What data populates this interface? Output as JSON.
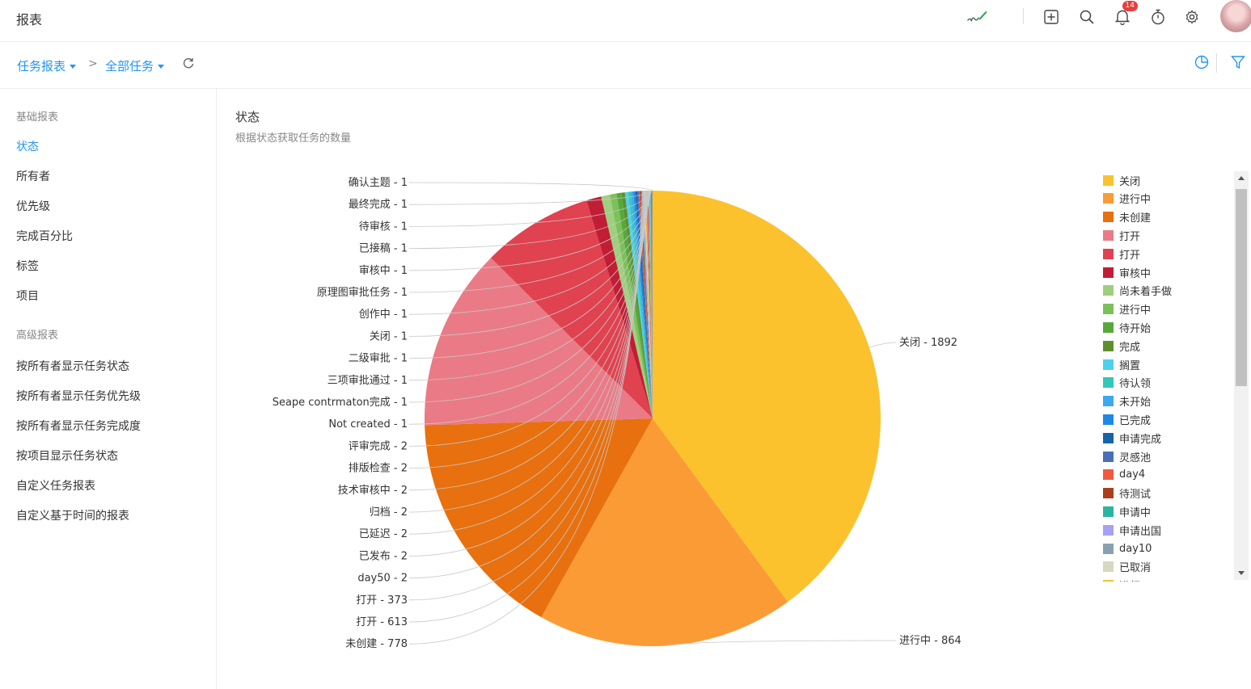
{
  "header": {
    "title": "报表",
    "notification_count": "14",
    "icons": [
      "sign-icon",
      "add-icon",
      "search-icon",
      "bell-icon",
      "timer-icon",
      "gear-icon",
      "avatar"
    ]
  },
  "breadcrumb": {
    "item1": "任务报表",
    "item2": "全部任务"
  },
  "sidebar": {
    "section_basic": "基础报表",
    "basic_items": [
      "状态",
      "所有者",
      "优先级",
      "完成百分比",
      "标签",
      "项目"
    ],
    "section_advanced": "高级报表",
    "advanced_items": [
      "按所有者显示任务状态",
      "按所有者显示任务优先级",
      "按所有者显示任务完成度",
      "按项目显示任务状态",
      "自定义任务报表",
      "自定义基于时间的报表"
    ],
    "active_item": "状态"
  },
  "main": {
    "title": "状态",
    "subtitle": "根据状态获取任务的数量"
  },
  "chart_data": {
    "type": "pie",
    "slices": [
      {
        "label": "关闭",
        "value": 1892,
        "color": "#fbc22e"
      },
      {
        "label": "进行中",
        "value": 864,
        "color": "#fb9b36"
      },
      {
        "label": "未创建",
        "value": 778,
        "color": "#e8700e"
      },
      {
        "label": "打开",
        "value": 613,
        "color": "#ea7b86"
      },
      {
        "label": "打开",
        "value": 373,
        "color": "#e04250"
      },
      {
        "label": "审核中",
        "value": 50,
        "color": "#c11d34"
      },
      {
        "label": "尚未着手做",
        "value": 30,
        "color": "#9ecf7f"
      },
      {
        "label": "进行中",
        "value": 22,
        "color": "#7cc05a"
      },
      {
        "label": "待开始",
        "value": 16,
        "color": "#56a83a"
      },
      {
        "label": "完成",
        "value": 12,
        "color": "#5f8f2c"
      },
      {
        "label": "搁置",
        "value": 11,
        "color": "#4dd0f0"
      },
      {
        "label": "待认领",
        "value": 9,
        "color": "#33c8b8"
      },
      {
        "label": "未开始",
        "value": 8,
        "color": "#3ba8f0"
      },
      {
        "label": "已完成",
        "value": 7,
        "color": "#1e88e5"
      },
      {
        "label": "申请完成",
        "value": 6,
        "color": "#1563a8"
      },
      {
        "label": "灵感池",
        "value": 5,
        "color": "#4a6eb8"
      },
      {
        "label": "day4",
        "value": 4,
        "color": "#f05a40"
      },
      {
        "label": "待测试",
        "value": 4,
        "color": "#a8401f"
      },
      {
        "label": "申请中",
        "value": 3,
        "color": "#2ab5a0"
      },
      {
        "label": "申请出国",
        "value": 3,
        "color": "#a8a0f0"
      },
      {
        "label": "day10",
        "value": 3,
        "color": "#8aa0b0"
      },
      {
        "label": "已取消",
        "value": 3,
        "color": "#d8d8c0"
      },
      {
        "label": "day50",
        "value": 2,
        "color": "#f2c230"
      },
      {
        "label": "已发布",
        "value": 2,
        "color": "#f09a4a"
      },
      {
        "label": "已延迟",
        "value": 2,
        "color": "#d8701a"
      },
      {
        "label": "归档",
        "value": 2,
        "color": "#ea8a96"
      },
      {
        "label": "技术审核中",
        "value": 2,
        "color": "#e05060"
      },
      {
        "label": "排版检查",
        "value": 2,
        "color": "#b02038"
      },
      {
        "label": "评审完成",
        "value": 2,
        "color": "#a8d088"
      },
      {
        "label": "Not created",
        "value": 1,
        "color": "#88c068"
      },
      {
        "label": "Seape contrmaton完成",
        "value": 1,
        "color": "#60a840"
      },
      {
        "label": "三项审批通过",
        "value": 1,
        "color": "#689030"
      },
      {
        "label": "二级审批",
        "value": 1,
        "color": "#60d0f0"
      },
      {
        "label": "关闭",
        "value": 1,
        "color": "#40c0b0"
      },
      {
        "label": "创作中",
        "value": 1,
        "color": "#40a0f0"
      },
      {
        "label": "原理图审批任务",
        "value": 1,
        "color": "#2080e0"
      },
      {
        "label": "审核中",
        "value": 1,
        "color": "#1060a0"
      },
      {
        "label": "已接稿",
        "value": 1,
        "color": "#5070b0"
      },
      {
        "label": "待审核",
        "value": 1,
        "color": "#f06050"
      },
      {
        "label": "最终完成",
        "value": 1,
        "color": "#a04020"
      },
      {
        "label": "确认主题",
        "value": 1,
        "color": "#30b0a0"
      }
    ],
    "legend": {
      "placement": "right",
      "entries": [
        "关闭",
        "进行中",
        "未创建",
        "打开",
        "打开",
        "审核中",
        "尚未着手做",
        "进行中",
        "待开始",
        "完成",
        "搁置",
        "待认领",
        "未开始",
        "已完成",
        "申请完成",
        "灵感池",
        "day4",
        "待测试",
        "申请中",
        "申请出国",
        "day10",
        "已取消",
        "进行"
      ]
    },
    "right_labels": [
      "关闭 - 1892",
      "进行中 - 864"
    ],
    "left_labels": [
      "确认主题 - 1",
      "最终完成 - 1",
      "待审核 - 1",
      "已接稿 - 1",
      "审核中 - 1",
      "原理图审批任务 - 1",
      "创作中 - 1",
      "关闭 - 1",
      "二级审批 - 1",
      "三项审批通过 - 1",
      "Seape contrmaton完成 - 1",
      "Not created - 1",
      "评审完成 - 2",
      "排版检查 - 2",
      "技术审核中 - 2",
      "归档 - 2",
      "已延迟 - 2",
      "已发布 - 2",
      "day50 - 2",
      "打开 - 373",
      "打开 - 613",
      "未创建 - 778"
    ]
  }
}
